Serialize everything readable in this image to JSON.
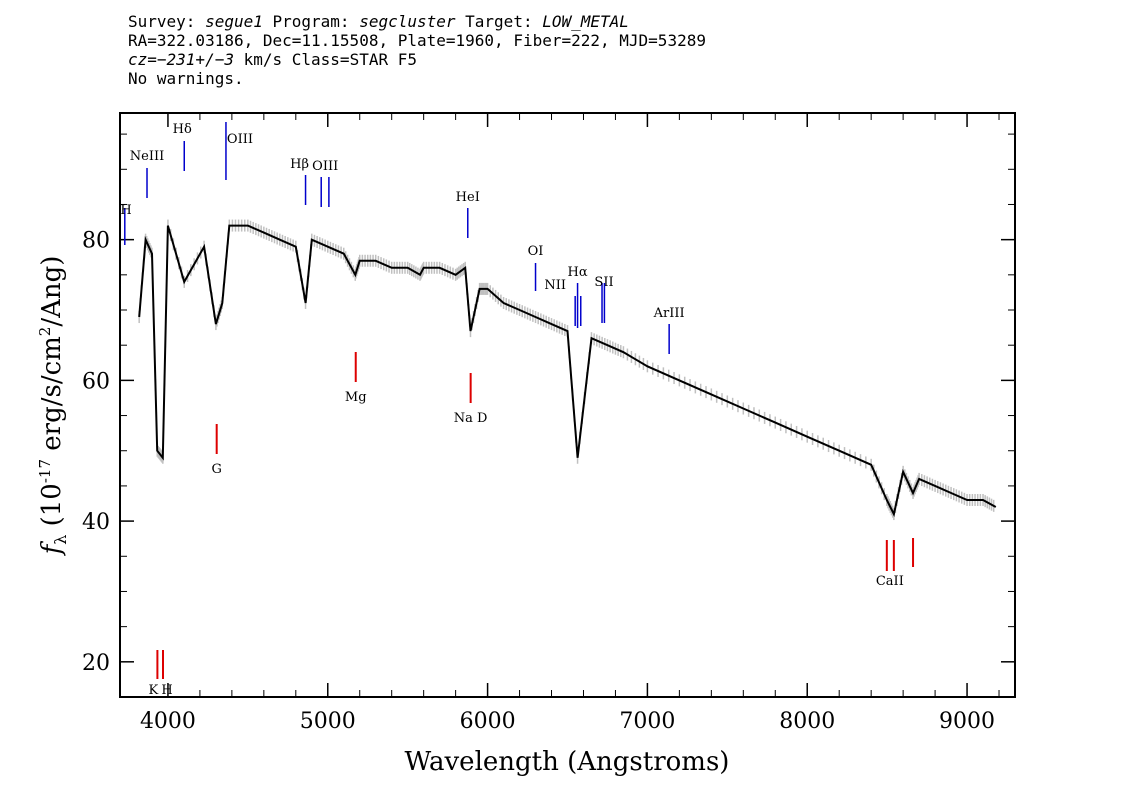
{
  "header": {
    "l1_a": "Survey: ",
    "l1_b": "segue1",
    "l1_c": " Program: ",
    "l1_d": "segcluster",
    "l1_e": " Target: ",
    "l1_f": "LOW_METAL",
    "l2": "RA=322.03186, Dec=11.15508, Plate=1960, Fiber=222, MJD=53289",
    "l3_a": "cz=−231+/−3",
    "l3_b": " km/s Class=STAR F5",
    "l4": "No warnings."
  },
  "chart_data": {
    "type": "line",
    "xlabel": "Wavelength (Angstroms)",
    "ylabel": "f_λ (10^-17 erg/s/cm²/Ang)",
    "xlim": [
      3700,
      9300
    ],
    "ylim": [
      15,
      98
    ],
    "x_ticks": [
      4000,
      5000,
      6000,
      7000,
      8000,
      9000
    ],
    "y_ticks": [
      20,
      40,
      60,
      80
    ],
    "series": [
      {
        "color": "#000000",
        "error_color": "#c0c0c0",
        "x": [
          3820,
          3860,
          3900,
          3933,
          3968,
          4000,
          4102,
          4226,
          4300,
          4340,
          4384,
          4500,
          4600,
          4700,
          4800,
          4861,
          4900,
          5000,
          5100,
          5172,
          5200,
          5300,
          5400,
          5500,
          5577,
          5600,
          5700,
          5800,
          5860,
          5893,
          5950,
          6000,
          6100,
          6200,
          6300,
          6400,
          6500,
          6563,
          6650,
          6750,
          6850,
          7000,
          7200,
          7400,
          7600,
          7800,
          8000,
          8200,
          8400,
          8498,
          8542,
          8600,
          8662,
          8700,
          8800,
          8900,
          9000,
          9100,
          9180
        ],
        "y": [
          69,
          80,
          78,
          50,
          49,
          82,
          74,
          79,
          68,
          71,
          82,
          82,
          81,
          80,
          79,
          71,
          80,
          79,
          78,
          75,
          77,
          77,
          76,
          76,
          75,
          76,
          76,
          75,
          76,
          67,
          73,
          73,
          71,
          70,
          69,
          68,
          67,
          49,
          66,
          65,
          64,
          62,
          60,
          58,
          56,
          54,
          52,
          50,
          48,
          43,
          41,
          47,
          44,
          46,
          45,
          44,
          43,
          43,
          42
        ]
      }
    ],
    "lines_emission": [
      {
        "label": "H",
        "x": 3730
      },
      {
        "label": "NeIII",
        "x": 3869
      },
      {
        "label": "Hδ",
        "x": 4102
      },
      {
        "label": "OIII",
        "x": 4363
      },
      {
        "label": "Hβ",
        "x": 4861
      },
      {
        "label": "OIII",
        "x": 4959
      },
      {
        "label": "OIII",
        "x": 5007
      },
      {
        "label": "HeI",
        "x": 5876
      },
      {
        "label": "OI",
        "x": 6300
      },
      {
        "label": "NII",
        "x": 6548
      },
      {
        "label": "Hα",
        "x": 6563
      },
      {
        "label": "NII",
        "x": 6583
      },
      {
        "label": "SII",
        "x": 6716
      },
      {
        "label": "SII",
        "x": 6731
      },
      {
        "label": "ArIII",
        "x": 7136
      }
    ],
    "lines_absorption": [
      {
        "label": "K",
        "x": 3934
      },
      {
        "label": "H",
        "x": 3969
      },
      {
        "label": "G",
        "x": 4305
      },
      {
        "label": "Mg",
        "x": 5175
      },
      {
        "label": "Na D",
        "x": 5894
      },
      {
        "label": "CaII",
        "x": 8498
      },
      {
        "label": "CaII",
        "x": 8542
      },
      {
        "label": "CaII",
        "x": 8662
      }
    ],
    "colors": {
      "emission": "#0000cc",
      "absorption": "#dd0000"
    }
  }
}
